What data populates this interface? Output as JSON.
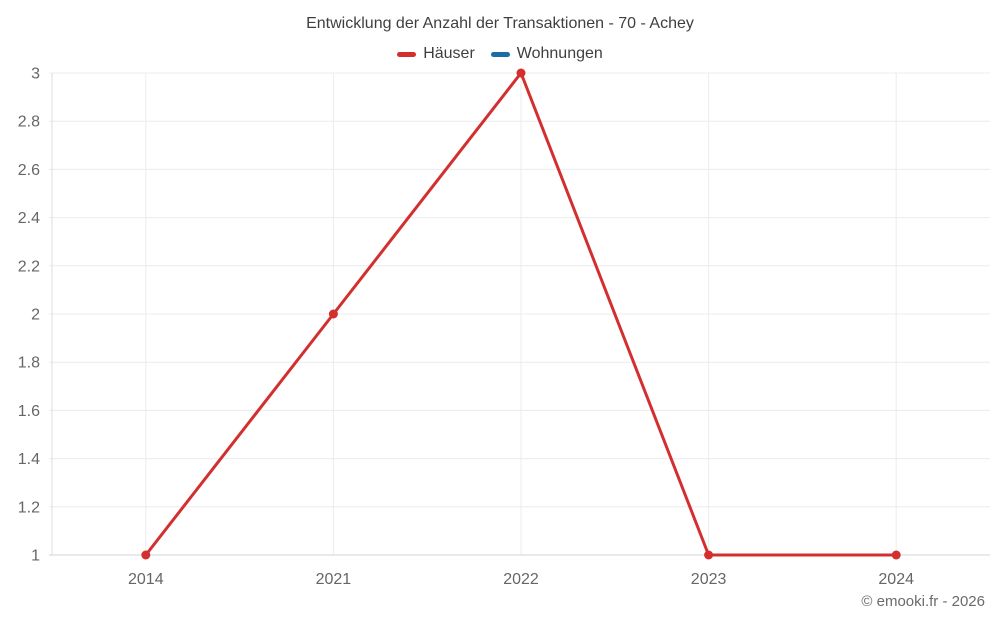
{
  "title": "Entwicklung der Anzahl der Transaktionen - 70 - Achey",
  "footer": {
    "copyright": "© emooki.fr - 2026"
  },
  "chart_data": {
    "type": "line",
    "title": "Entwicklung der Anzahl der Transaktionen - 70 - Achey",
    "categories": [
      "2014",
      "2021",
      "2022",
      "2023",
      "2024"
    ],
    "series": [
      {
        "name": "Häuser",
        "color": "#d32f2f",
        "values": [
          1,
          2,
          3,
          1,
          1
        ]
      },
      {
        "name": "Wohnungen",
        "color": "#1b6ea5",
        "values": []
      }
    ],
    "xlabel": "",
    "ylabel": "",
    "ylim": [
      1,
      3
    ],
    "y_ticks": [
      {
        "value": 1,
        "label": "1"
      },
      {
        "value": 1.2,
        "label": "1.2"
      },
      {
        "value": 1.4,
        "label": "1.4"
      },
      {
        "value": 1.6,
        "label": "1.6"
      },
      {
        "value": 1.8,
        "label": "1.8"
      },
      {
        "value": 2,
        "label": "2"
      },
      {
        "value": 2.2,
        "label": "2.2"
      },
      {
        "value": 2.4,
        "label": "2.4"
      },
      {
        "value": 2.6,
        "label": "2.6"
      },
      {
        "value": 2.8,
        "label": "2.8"
      },
      {
        "value": 3,
        "label": "3"
      }
    ],
    "grid": true,
    "legend_position": "top"
  }
}
